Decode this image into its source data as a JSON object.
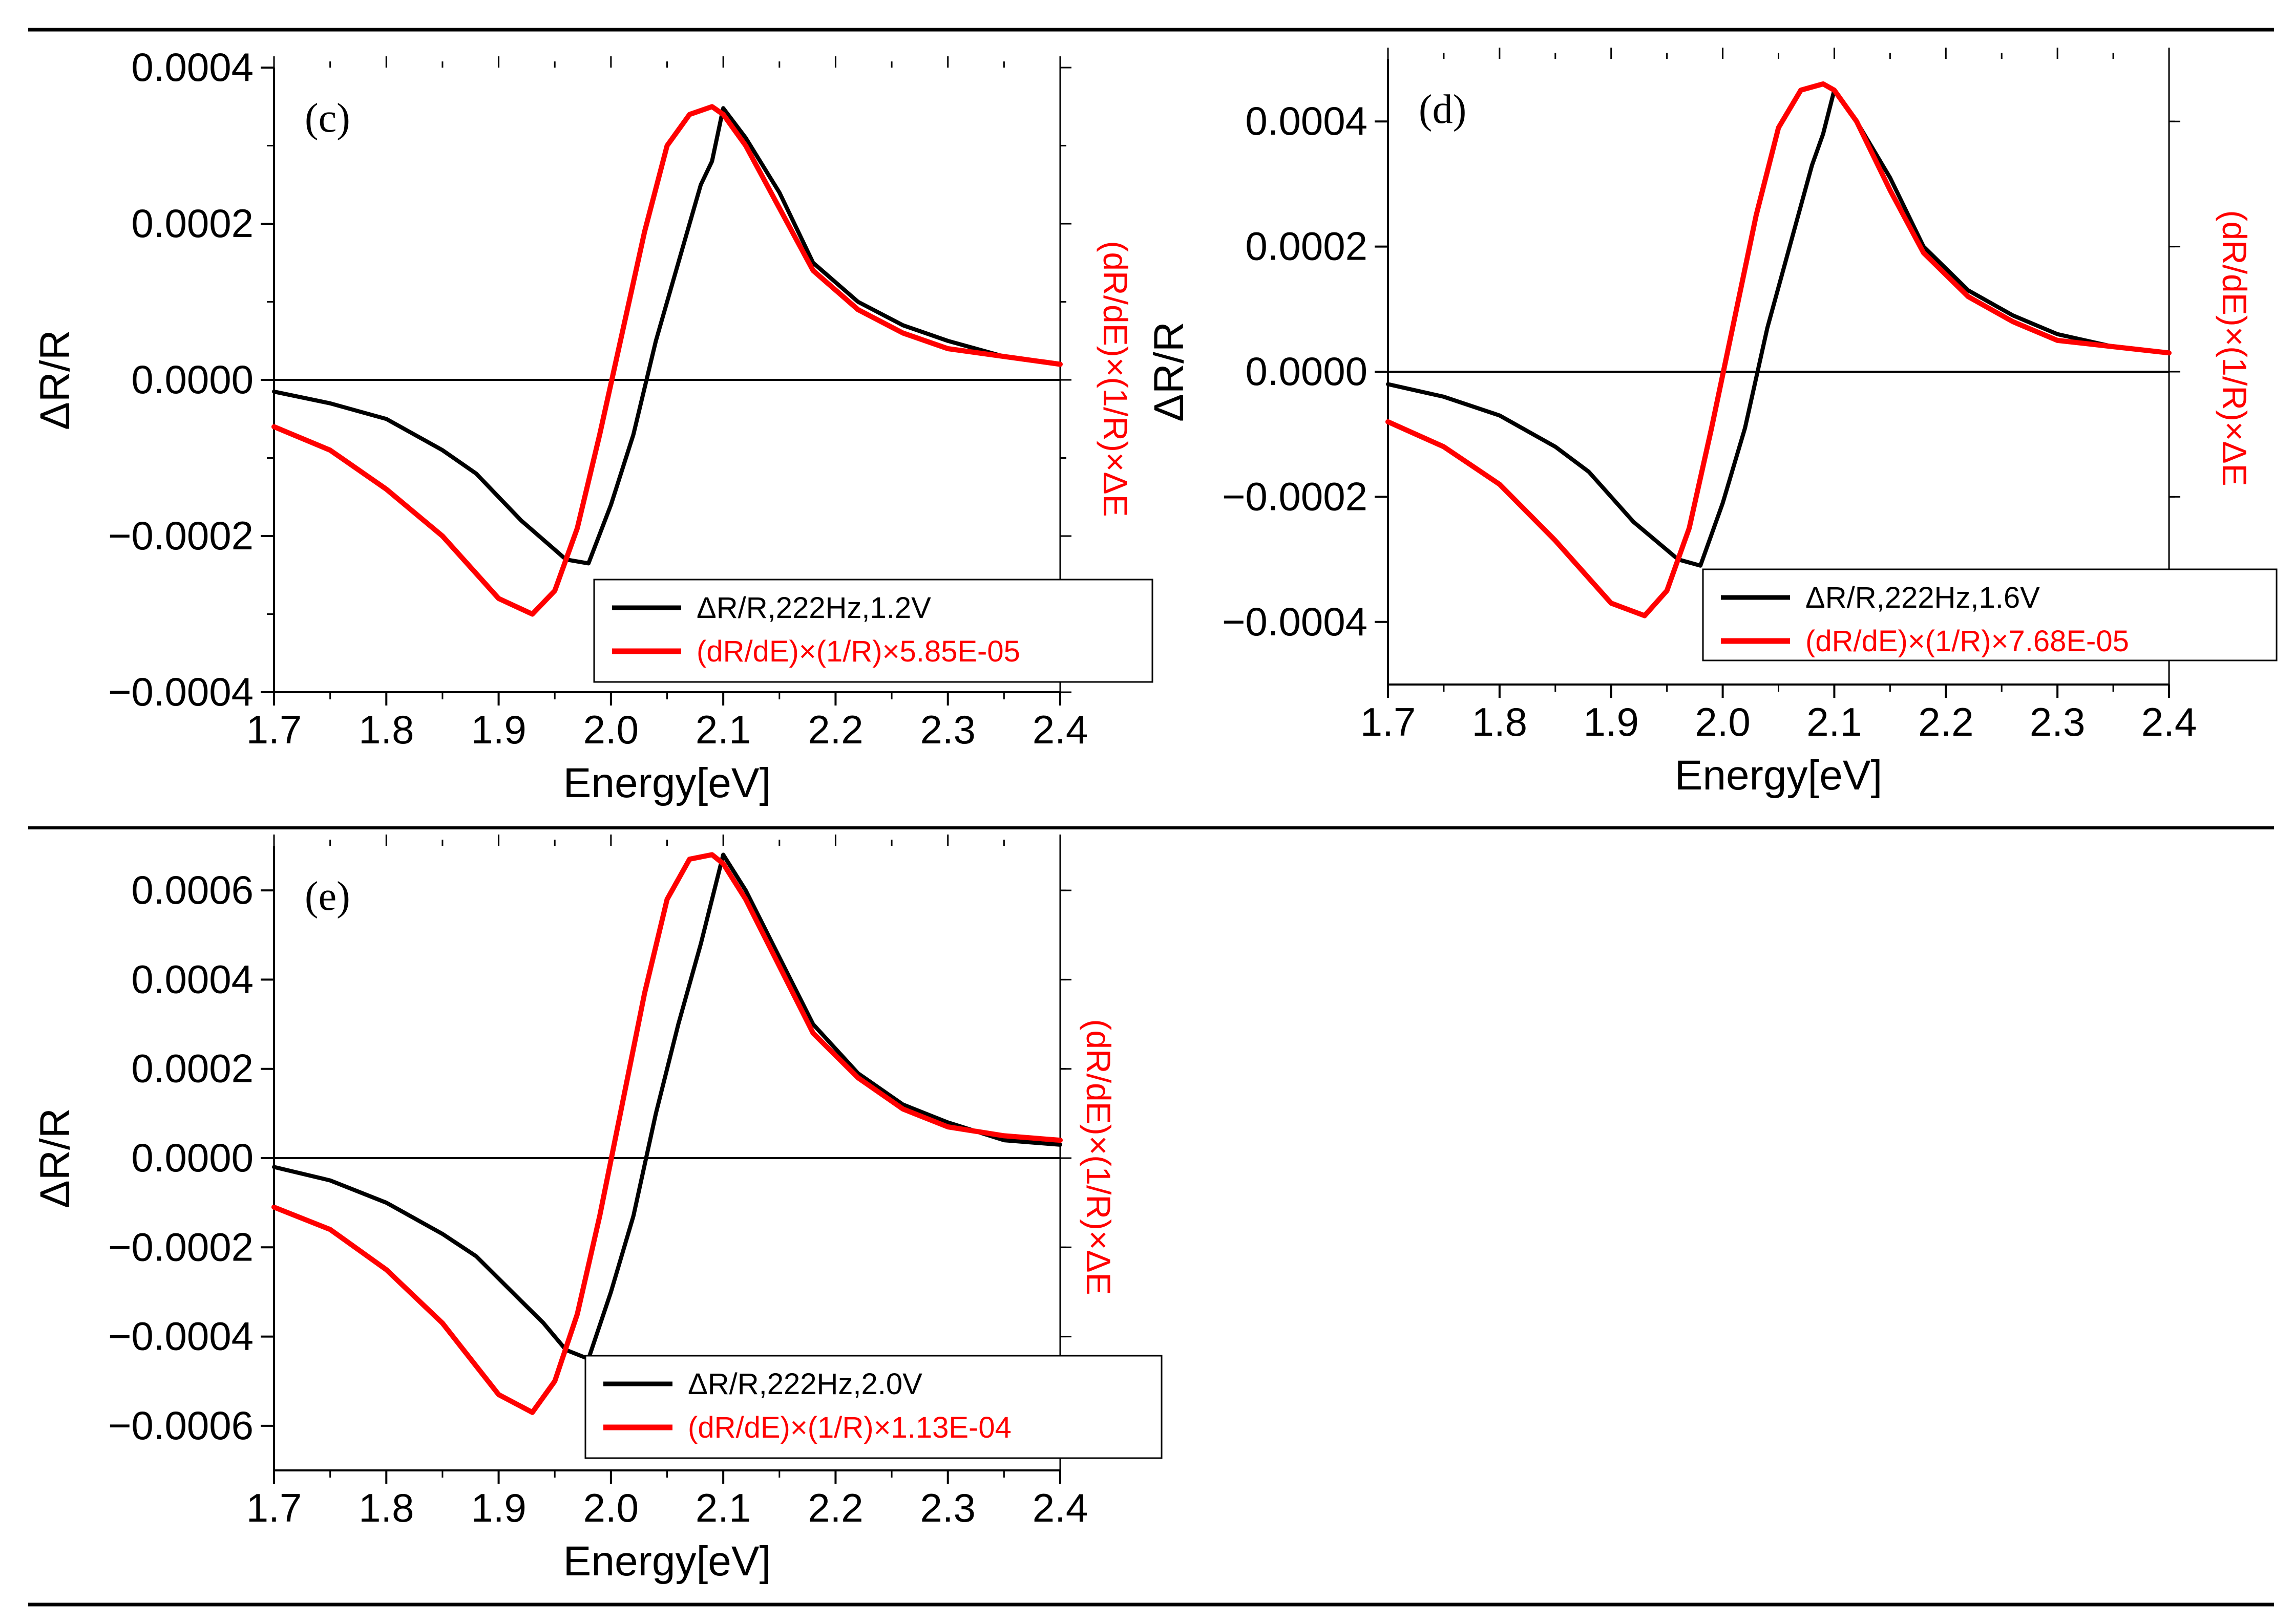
{
  "chart_data": [
    {
      "type": "line",
      "panel_label": "(c)",
      "xlabel": "Energy[eV]",
      "ylabel": "ΔR/R",
      "y2label": "(dR/dE)×(1/R)×ΔE",
      "xlim": [
        1.7,
        2.4
      ],
      "ylim": [
        -0.0004,
        0.0004
      ],
      "x_ticks": [
        "1.7",
        "1.8",
        "1.9",
        "2.0",
        "2.1",
        "2.2",
        "2.3",
        "2.4"
      ],
      "y_ticks": [
        {
          "value": 0.0004,
          "label": "0.0004"
        },
        {
          "value": 0.0002,
          "label": "0.0002"
        },
        {
          "value": 0.0,
          "label": "0.0000"
        },
        {
          "value": -0.0002,
          "label": "−0.0002"
        },
        {
          "value": -0.0004,
          "label": "−0.0004"
        }
      ],
      "legend": [
        "ΔR/R,222Hz,1.2V",
        "(dR/dE)×(1/R)×5.85E-05"
      ],
      "colors": {
        "measured": "#000000",
        "derivative": "#ff0000"
      },
      "series": [
        {
          "name": "ΔR/R,222Hz,1.2V",
          "color": "#000000",
          "x": [
            1.7,
            1.75,
            1.8,
            1.85,
            1.88,
            1.9,
            1.92,
            1.94,
            1.96,
            1.98,
            2.0,
            2.02,
            2.04,
            2.06,
            2.08,
            2.09,
            2.1,
            2.12,
            2.15,
            2.18,
            2.22,
            2.26,
            2.3,
            2.35,
            2.4
          ],
          "y": [
            -1.5e-05,
            -3e-05,
            -5e-05,
            -9e-05,
            -0.00012,
            -0.00015,
            -0.00018,
            -0.000205,
            -0.00023,
            -0.000235,
            -0.00016,
            -7e-05,
            5e-05,
            0.00015,
            0.00025,
            0.00028,
            0.000348,
            0.00031,
            0.00024,
            0.00015,
            0.0001,
            7e-05,
            5e-05,
            3e-05,
            2e-05
          ]
        },
        {
          "name": "(dR/dE)×(1/R)×5.85E-05",
          "color": "#ff0000",
          "x": [
            1.7,
            1.75,
            1.8,
            1.85,
            1.9,
            1.93,
            1.95,
            1.97,
            1.99,
            2.01,
            2.03,
            2.05,
            2.07,
            2.09,
            2.1,
            2.12,
            2.15,
            2.18,
            2.22,
            2.26,
            2.3,
            2.35,
            2.4
          ],
          "y": [
            -6e-05,
            -9e-05,
            -0.00014,
            -0.0002,
            -0.00028,
            -0.0003,
            -0.00027,
            -0.00019,
            -7e-05,
            6e-05,
            0.00019,
            0.0003,
            0.00034,
            0.00035,
            0.00034,
            0.0003,
            0.00022,
            0.00014,
            9e-05,
            6e-05,
            4e-05,
            3e-05,
            2e-05
          ]
        }
      ]
    },
    {
      "type": "line",
      "panel_label": "(d)",
      "xlabel": "Energy[eV]",
      "ylabel": "ΔR/R",
      "y2label": "(dR/dE)×(1/R)×ΔE",
      "xlim": [
        1.7,
        2.4
      ],
      "ylim": [
        -0.0005,
        0.0005
      ],
      "x_ticks": [
        "1.7",
        "1.8",
        "1.9",
        "2.0",
        "2.1",
        "2.2",
        "2.3",
        "2.4"
      ],
      "y_ticks": [
        {
          "value": 0.0004,
          "label": "0.0004"
        },
        {
          "value": 0.0002,
          "label": "0.0002"
        },
        {
          "value": 0.0,
          "label": "0.0000"
        },
        {
          "value": -0.0002,
          "label": "−0.0002"
        },
        {
          "value": -0.0004,
          "label": "−0.0004"
        }
      ],
      "legend": [
        "ΔR/R,222Hz,1.6V",
        "(dR/dE)×(1/R)×7.68E-05"
      ],
      "colors": {
        "measured": "#000000",
        "derivative": "#ff0000"
      },
      "series": [
        {
          "name": "ΔR/R,222Hz,1.6V",
          "color": "#000000",
          "x": [
            1.7,
            1.75,
            1.8,
            1.85,
            1.88,
            1.9,
            1.92,
            1.94,
            1.96,
            1.98,
            2.0,
            2.02,
            2.04,
            2.06,
            2.08,
            2.09,
            2.1,
            2.12,
            2.15,
            2.18,
            2.22,
            2.26,
            2.3,
            2.35,
            2.4
          ],
          "y": [
            -2e-05,
            -4e-05,
            -7e-05,
            -0.00012,
            -0.00016,
            -0.0002,
            -0.00024,
            -0.00027,
            -0.0003,
            -0.00031,
            -0.00021,
            -9e-05,
            7e-05,
            0.0002,
            0.00033,
            0.00038,
            0.00045,
            0.0004,
            0.00031,
            0.0002,
            0.00013,
            9e-05,
            6e-05,
            4e-05,
            3e-05
          ]
        },
        {
          "name": "(dR/dE)×(1/R)×7.68E-05",
          "color": "#ff0000",
          "x": [
            1.7,
            1.75,
            1.8,
            1.85,
            1.9,
            1.93,
            1.95,
            1.97,
            1.99,
            2.01,
            2.03,
            2.05,
            2.07,
            2.09,
            2.1,
            2.12,
            2.15,
            2.18,
            2.22,
            2.26,
            2.3,
            2.35,
            2.4
          ],
          "y": [
            -8e-05,
            -0.00012,
            -0.00018,
            -0.00027,
            -0.00037,
            -0.00039,
            -0.00035,
            -0.00025,
            -9e-05,
            8e-05,
            0.00025,
            0.00039,
            0.00045,
            0.00046,
            0.00045,
            0.0004,
            0.00029,
            0.00019,
            0.00012,
            8e-05,
            5e-05,
            4e-05,
            3e-05
          ]
        }
      ]
    },
    {
      "type": "line",
      "panel_label": "(e)",
      "xlabel": "Energy[eV]",
      "ylabel": "ΔR/R",
      "y2label": "(dR/dE)×(1/R)×ΔE",
      "xlim": [
        1.7,
        2.4
      ],
      "ylim": [
        -0.0007,
        0.0007
      ],
      "x_ticks": [
        "1.7",
        "1.8",
        "1.9",
        "2.0",
        "2.1",
        "2.2",
        "2.3",
        "2.4"
      ],
      "y_ticks": [
        {
          "value": 0.0006,
          "label": "0.0006"
        },
        {
          "value": 0.0004,
          "label": "0.0004"
        },
        {
          "value": 0.0002,
          "label": "0.0002"
        },
        {
          "value": 0.0,
          "label": "0.0000"
        },
        {
          "value": -0.0002,
          "label": "−0.0002"
        },
        {
          "value": -0.0004,
          "label": "−0.0004"
        },
        {
          "value": -0.0006,
          "label": "−0.0006"
        }
      ],
      "legend": [
        "ΔR/R,222Hz,2.0V",
        "(dR/dE)×(1/R)×1.13E-04"
      ],
      "colors": {
        "measured": "#000000",
        "derivative": "#ff0000"
      },
      "series": [
        {
          "name": "ΔR/R,222Hz,2.0V",
          "color": "#000000",
          "x": [
            1.7,
            1.75,
            1.8,
            1.85,
            1.88,
            1.9,
            1.92,
            1.94,
            1.96,
            1.98,
            2.0,
            2.02,
            2.04,
            2.06,
            2.08,
            2.09,
            2.1,
            2.12,
            2.15,
            2.18,
            2.22,
            2.26,
            2.3,
            2.35,
            2.4
          ],
          "y": [
            -2e-05,
            -5e-05,
            -0.0001,
            -0.00017,
            -0.00022,
            -0.00027,
            -0.00032,
            -0.00037,
            -0.00043,
            -0.00045,
            -0.0003,
            -0.00013,
            0.0001,
            0.0003,
            0.00048,
            0.00058,
            0.00068,
            0.0006,
            0.00045,
            0.0003,
            0.00019,
            0.00012,
            8e-05,
            4e-05,
            3e-05
          ]
        },
        {
          "name": "(dR/dE)×(1/R)×1.13E-04",
          "color": "#ff0000",
          "x": [
            1.7,
            1.75,
            1.8,
            1.85,
            1.9,
            1.93,
            1.95,
            1.97,
            1.99,
            2.01,
            2.03,
            2.05,
            2.07,
            2.09,
            2.1,
            2.12,
            2.15,
            2.18,
            2.22,
            2.26,
            2.3,
            2.35,
            2.4
          ],
          "y": [
            -0.00011,
            -0.00016,
            -0.00025,
            -0.00037,
            -0.00053,
            -0.00057,
            -0.0005,
            -0.00035,
            -0.00013,
            0.00012,
            0.00037,
            0.00058,
            0.00067,
            0.00068,
            0.00066,
            0.00058,
            0.00043,
            0.00028,
            0.00018,
            0.00011,
            7e-05,
            5e-05,
            4e-05
          ]
        }
      ]
    }
  ]
}
